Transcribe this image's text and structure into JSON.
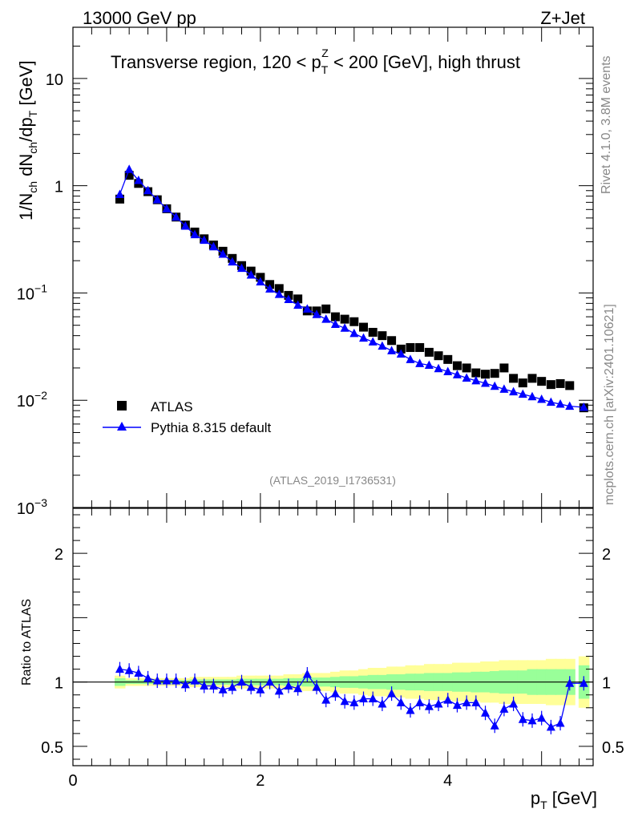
{
  "header": {
    "left": "13000 GeV pp",
    "right": "Z+Jet"
  },
  "annotations": {
    "rivet": "Rivet 4.1.0,  3.8M events",
    "mcplots": "mcplots.cern.ch [arXiv:2401.10621]",
    "analysis_id": "(ATLAS_2019_I1736531)"
  },
  "chart_data": [
    {
      "type": "scatter",
      "panel": "main",
      "title": "Transverse region, 120 < p_T^Z < 200 [GeV], high thrust",
      "title_parts": {
        "prefix": "Transverse region, 120 < p",
        "sup": "Z",
        "sub": "T",
        "suffix": " < 200 [GeV], high thrust"
      },
      "ylabel": "1/N_ch dN_ch/dp_T [GeV]",
      "ylabel_parts": [
        "1/N",
        "ch",
        " dN",
        "ch",
        "/dp",
        "T",
        " [GeV]"
      ],
      "yscale": "log",
      "xlim": [
        0,
        5.55
      ],
      "ylim": [
        0.001,
        30
      ],
      "yticks": [
        {
          "value": 10,
          "label": "10"
        },
        {
          "value": 1,
          "label": "1"
        },
        {
          "value": 0.1,
          "label": "10",
          "exp": "−1"
        },
        {
          "value": 0.01,
          "label": "10",
          "exp": "−2"
        },
        {
          "value": 0.001,
          "label": "10",
          "exp": "−3"
        }
      ],
      "legend": {
        "placement": "lower-left",
        "entries": [
          "ATLAS",
          "Pythia 8.315 default"
        ]
      },
      "x": [
        0.5,
        0.6,
        0.7,
        0.8,
        0.9,
        1.0,
        1.1,
        1.2,
        1.3,
        1.4,
        1.5,
        1.6,
        1.7,
        1.8,
        1.9,
        2.0,
        2.1,
        2.2,
        2.3,
        2.4,
        2.5,
        2.6,
        2.7,
        2.8,
        2.9,
        3.0,
        3.1,
        3.2,
        3.3,
        3.4,
        3.5,
        3.6,
        3.7,
        3.8,
        3.9,
        4.0,
        4.1,
        4.2,
        4.3,
        4.4,
        4.5,
        4.6,
        4.7,
        4.8,
        4.9,
        5.0,
        5.1,
        5.2,
        5.3,
        5.45
      ],
      "series": [
        {
          "name": "ATLAS",
          "marker": "square",
          "color": "#000000",
          "values": [
            0.75,
            1.25,
            1.05,
            0.88,
            0.74,
            0.61,
            0.51,
            0.43,
            0.37,
            0.32,
            0.28,
            0.245,
            0.21,
            0.18,
            0.16,
            0.14,
            0.12,
            0.11,
            0.095,
            0.088,
            0.068,
            0.068,
            0.071,
            0.06,
            0.057,
            0.054,
            0.048,
            0.043,
            0.04,
            0.036,
            0.03,
            0.031,
            0.031,
            0.028,
            0.026,
            0.024,
            0.021,
            0.02,
            0.018,
            0.0175,
            0.0178,
            0.02,
            0.016,
            0.0145,
            0.016,
            0.015,
            0.014,
            0.0143,
            0.0137,
            0.0085
          ]
        },
        {
          "name": "Pythia 8.315 default",
          "marker": "triangle",
          "color": "#0000ff",
          "values": [
            0.83,
            1.42,
            1.12,
            0.9,
            0.74,
            0.61,
            0.51,
            0.42,
            0.35,
            0.31,
            0.27,
            0.23,
            0.195,
            0.17,
            0.147,
            0.127,
            0.109,
            0.097,
            0.087,
            0.077,
            0.071,
            0.063,
            0.057,
            0.051,
            0.047,
            0.042,
            0.038,
            0.035,
            0.032,
            0.029,
            0.027,
            0.024,
            0.022,
            0.0212,
            0.0197,
            0.0185,
            0.0173,
            0.0161,
            0.0152,
            0.0144,
            0.0135,
            0.0127,
            0.012,
            0.0114,
            0.0108,
            0.0102,
            0.0096,
            0.0092,
            0.0088,
            0.0086
          ]
        }
      ]
    },
    {
      "type": "scatter",
      "panel": "ratio",
      "ylabel": "Ratio to ATLAS",
      "xlabel": "p_T [GeV]",
      "xlabel_parts": [
        "p",
        "T",
        " [GeV]"
      ],
      "xlim": [
        0,
        5.55
      ],
      "ylim": [
        0.35,
        2.35
      ],
      "xticks": [
        {
          "value": 0,
          "label": "0"
        },
        {
          "value": 2,
          "label": "2"
        },
        {
          "value": 4,
          "label": "4"
        }
      ],
      "yticks": [
        {
          "value": 2,
          "label": "2"
        },
        {
          "value": 1,
          "label": "1"
        },
        {
          "value": 0.5,
          "label": "0.5"
        }
      ],
      "reference": 1,
      "bands": [
        {
          "name": "stat+syst",
          "color": "#ffff99",
          "lower": [
            0.95,
            0.97,
            0.97,
            0.97,
            0.97,
            0.97,
            0.97,
            0.97,
            0.96,
            0.96,
            0.96,
            0.96,
            0.96,
            0.95,
            0.95,
            0.95,
            0.95,
            0.95,
            0.94,
            0.94,
            0.93,
            0.93,
            0.93,
            0.92,
            0.91,
            0.91,
            0.9,
            0.89,
            0.89,
            0.88,
            0.88,
            0.87,
            0.87,
            0.86,
            0.86,
            0.86,
            0.85,
            0.85,
            0.85,
            0.84,
            0.84,
            0.83,
            0.83,
            0.83,
            0.83,
            0.83,
            0.82,
            0.82,
            0.82,
            0.8
          ],
          "upper": [
            1.05,
            1.03,
            1.03,
            1.03,
            1.03,
            1.03,
            1.03,
            1.03,
            1.04,
            1.04,
            1.04,
            1.04,
            1.04,
            1.05,
            1.05,
            1.05,
            1.05,
            1.05,
            1.06,
            1.06,
            1.07,
            1.07,
            1.07,
            1.08,
            1.09,
            1.09,
            1.1,
            1.11,
            1.11,
            1.12,
            1.12,
            1.13,
            1.13,
            1.14,
            1.14,
            1.14,
            1.15,
            1.15,
            1.15,
            1.16,
            1.16,
            1.17,
            1.17,
            1.17,
            1.17,
            1.17,
            1.18,
            1.18,
            1.18,
            1.2
          ]
        },
        {
          "name": "stat",
          "color": "#99ff99",
          "lower": [
            0.97,
            0.985,
            0.985,
            0.985,
            0.985,
            0.985,
            0.985,
            0.985,
            0.98,
            0.98,
            0.98,
            0.98,
            0.98,
            0.975,
            0.975,
            0.975,
            0.975,
            0.975,
            0.97,
            0.97,
            0.965,
            0.965,
            0.965,
            0.96,
            0.955,
            0.955,
            0.95,
            0.945,
            0.945,
            0.94,
            0.94,
            0.935,
            0.935,
            0.93,
            0.93,
            0.93,
            0.925,
            0.925,
            0.92,
            0.92,
            0.915,
            0.91,
            0.91,
            0.91,
            0.9,
            0.9,
            0.9,
            0.9,
            0.9,
            0.87
          ],
          "upper": [
            1.03,
            1.015,
            1.015,
            1.015,
            1.015,
            1.015,
            1.015,
            1.015,
            1.02,
            1.02,
            1.02,
            1.02,
            1.02,
            1.025,
            1.025,
            1.025,
            1.025,
            1.025,
            1.03,
            1.03,
            1.035,
            1.035,
            1.035,
            1.04,
            1.045,
            1.045,
            1.05,
            1.055,
            1.055,
            1.06,
            1.06,
            1.065,
            1.065,
            1.07,
            1.07,
            1.07,
            1.075,
            1.075,
            1.08,
            1.08,
            1.085,
            1.09,
            1.09,
            1.09,
            1.1,
            1.1,
            1.1,
            1.1,
            1.1,
            1.13
          ]
        }
      ],
      "series": [
        {
          "name": "Pythia 8.315 default / ATLAS",
          "marker": "triangle",
          "color": "#0000ff",
          "values": [
            1.1,
            1.09,
            1.07,
            1.03,
            1.01,
            1.01,
            1.01,
            0.98,
            1.01,
            0.97,
            0.97,
            0.94,
            0.96,
            1.0,
            0.96,
            0.94,
            1.0,
            0.93,
            0.97,
            0.95,
            1.06,
            0.96,
            0.86,
            0.91,
            0.85,
            0.84,
            0.87,
            0.87,
            0.83,
            0.91,
            0.84,
            0.78,
            0.84,
            0.81,
            0.83,
            0.86,
            0.82,
            0.84,
            0.84,
            0.76,
            0.66,
            0.79,
            0.83,
            0.71,
            0.7,
            0.72,
            0.65,
            0.68,
            0.99,
            0.99
          ]
        }
      ]
    }
  ]
}
